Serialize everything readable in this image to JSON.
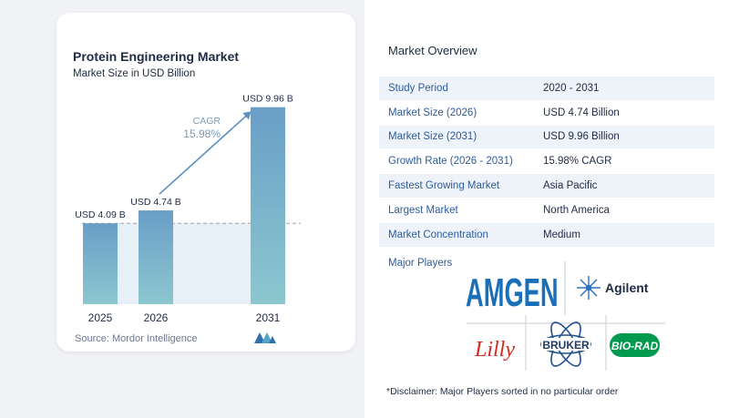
{
  "chart_data": {
    "type": "bar",
    "title": "Protein Engineering Market",
    "subtitle": "Market Size in USD Billion",
    "categories": [
      "2025",
      "2026",
      "2031"
    ],
    "values": [
      4.09,
      4.74,
      9.96
    ],
    "data_labels": [
      "USD 4.09 B",
      "USD 4.74 B",
      "USD 9.96 B"
    ],
    "ylim": [
      0,
      10.5
    ],
    "grid": false,
    "reference_line_value": 4.09,
    "annotation": {
      "label": "CAGR",
      "value": "15.98%"
    },
    "colors": {
      "bar_top": "#6a9ec7",
      "bar_bottom": "#8cc7cf",
      "arrow": "#5b8fc0",
      "cagr_text": "#7a9ab8",
      "reference_fill": "#dde8f3"
    }
  },
  "source": "Source:  Mordor Intelligence",
  "overview": {
    "title": "Market Overview",
    "rows": [
      {
        "label": "Study Period",
        "value": "2020 - 2031"
      },
      {
        "label": "Market Size (2026)",
        "value": "USD 4.74 Billion"
      },
      {
        "label": "Market Size (2031)",
        "value": "USD 9.96 Billion"
      },
      {
        "label": "Growth Rate (2026 - 2031)",
        "value": "15.98% CAGR"
      },
      {
        "label": "Fastest Growing Market",
        "value": "Asia Pacific"
      },
      {
        "label": "Largest Market",
        "value": "North America"
      },
      {
        "label": "Market Concentration",
        "value": "Medium"
      }
    ]
  },
  "players": {
    "label": "Major Players",
    "logos": [
      "AMGEN",
      "Agilent",
      "Lilly",
      "BRUKER",
      "BIO-RAD"
    ]
  },
  "disclaimer": "*Disclaimer: Major Players sorted in no particular order"
}
